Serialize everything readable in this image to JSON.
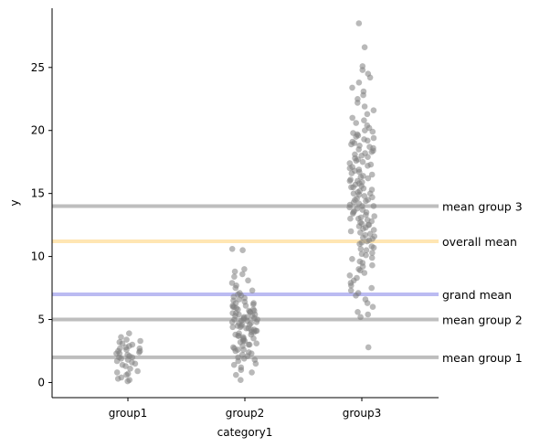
{
  "chart_data": {
    "type": "scatter",
    "subtype": "strip",
    "xlabel": "category1",
    "ylabel": "y",
    "categories": [
      "group1",
      "group2",
      "group3"
    ],
    "ylim": [
      -1.2,
      29.7
    ],
    "yticks": [
      0,
      5,
      10,
      15,
      20,
      25
    ],
    "grid": false,
    "point_color": "#808080",
    "point_alpha": 0.55,
    "series": [
      {
        "category": "group1",
        "values": [
          0.1,
          0.2,
          0.3,
          0.4,
          0.6,
          0.7,
          0.8,
          0.9,
          1.1,
          1.3,
          1.4,
          1.5,
          1.6,
          1.7,
          1.8,
          1.9,
          2.0,
          2.0,
          2.1,
          2.2,
          2.3,
          2.3,
          2.4,
          2.5,
          2.5,
          2.6,
          2.7,
          2.7,
          2.8,
          2.9,
          3.0,
          3.1,
          3.2,
          3.3,
          3.4,
          3.6,
          3.9
        ]
      },
      {
        "category": "group2",
        "values": [
          0.2,
          0.6,
          0.8,
          1.0,
          1.2,
          1.4,
          1.5,
          1.7,
          1.8,
          1.9,
          2.0,
          2.1,
          2.2,
          2.3,
          2.4,
          2.5,
          2.6,
          2.6,
          2.7,
          2.8,
          2.9,
          3.0,
          3.0,
          3.1,
          3.2,
          3.3,
          3.3,
          3.4,
          3.5,
          3.5,
          3.6,
          3.7,
          3.7,
          3.8,
          3.8,
          3.9,
          4.0,
          4.0,
          4.1,
          4.1,
          4.2,
          4.2,
          4.3,
          4.3,
          4.4,
          4.4,
          4.5,
          4.5,
          4.6,
          4.6,
          4.7,
          4.7,
          4.8,
          4.8,
          4.9,
          4.9,
          5.0,
          5.0,
          5.0,
          5.1,
          5.1,
          5.2,
          5.2,
          5.3,
          5.3,
          5.4,
          5.4,
          5.5,
          5.5,
          5.6,
          5.6,
          5.7,
          5.7,
          5.8,
          5.8,
          5.9,
          6.0,
          6.0,
          6.1,
          6.1,
          6.2,
          6.3,
          6.3,
          6.4,
          6.5,
          6.6,
          6.7,
          6.8,
          6.9,
          7.0,
          7.1,
          7.3,
          7.5,
          7.7,
          7.9,
          8.1,
          8.4,
          8.6,
          8.8,
          9.0,
          10.5,
          10.6
        ]
      },
      {
        "category": "group3",
        "values": [
          2.8,
          5.2,
          5.4,
          5.6,
          6.0,
          6.3,
          6.6,
          6.9,
          7.1,
          7.3,
          7.5,
          7.7,
          7.9,
          8.1,
          8.3,
          8.5,
          8.7,
          8.9,
          9.0,
          9.2,
          9.3,
          9.5,
          9.6,
          9.8,
          9.9,
          10.1,
          10.2,
          10.3,
          10.5,
          10.6,
          10.7,
          10.8,
          11.0,
          11.1,
          11.2,
          11.3,
          11.4,
          11.5,
          11.6,
          11.7,
          11.8,
          11.9,
          12.0,
          12.1,
          12.2,
          12.3,
          12.4,
          12.5,
          12.5,
          12.6,
          12.7,
          12.8,
          12.9,
          13.0,
          13.0,
          13.1,
          13.2,
          13.3,
          13.4,
          13.5,
          13.5,
          13.6,
          13.7,
          13.8,
          13.9,
          14.0,
          14.0,
          14.1,
          14.2,
          14.3,
          14.4,
          14.5,
          14.5,
          14.6,
          14.7,
          14.8,
          14.9,
          15.0,
          15.0,
          15.1,
          15.2,
          15.3,
          15.4,
          15.5,
          15.5,
          15.6,
          15.7,
          15.8,
          15.9,
          16.0,
          16.0,
          16.1,
          16.2,
          16.3,
          16.4,
          16.5,
          16.6,
          16.7,
          16.8,
          16.9,
          17.0,
          17.1,
          17.2,
          17.3,
          17.4,
          17.5,
          17.6,
          17.7,
          17.8,
          17.9,
          18.0,
          18.1,
          18.2,
          18.3,
          18.4,
          18.5,
          18.6,
          18.7,
          18.8,
          18.9,
          19.0,
          19.1,
          19.2,
          19.3,
          19.4,
          19.5,
          19.6,
          19.7,
          19.8,
          19.9,
          20.0,
          20.2,
          20.4,
          20.6,
          20.8,
          21.0,
          21.3,
          21.6,
          21.9,
          22.2,
          22.5,
          22.8,
          23.1,
          23.4,
          23.8,
          24.2,
          24.5,
          24.8,
          25.1,
          26.6,
          28.5
        ]
      }
    ],
    "reference_lines": [
      {
        "label": "mean group 3",
        "value": 14.0,
        "color": "#bebebe"
      },
      {
        "label": "overall mean",
        "value": 11.2,
        "color": "#ffe6b3"
      },
      {
        "label": "grand mean",
        "value": 7.0,
        "color": "#bbbbf2"
      },
      {
        "label": "mean group 2",
        "value": 5.0,
        "color": "#bebebe"
      },
      {
        "label": "mean group 1",
        "value": 2.0,
        "color": "#bebebe"
      }
    ]
  }
}
